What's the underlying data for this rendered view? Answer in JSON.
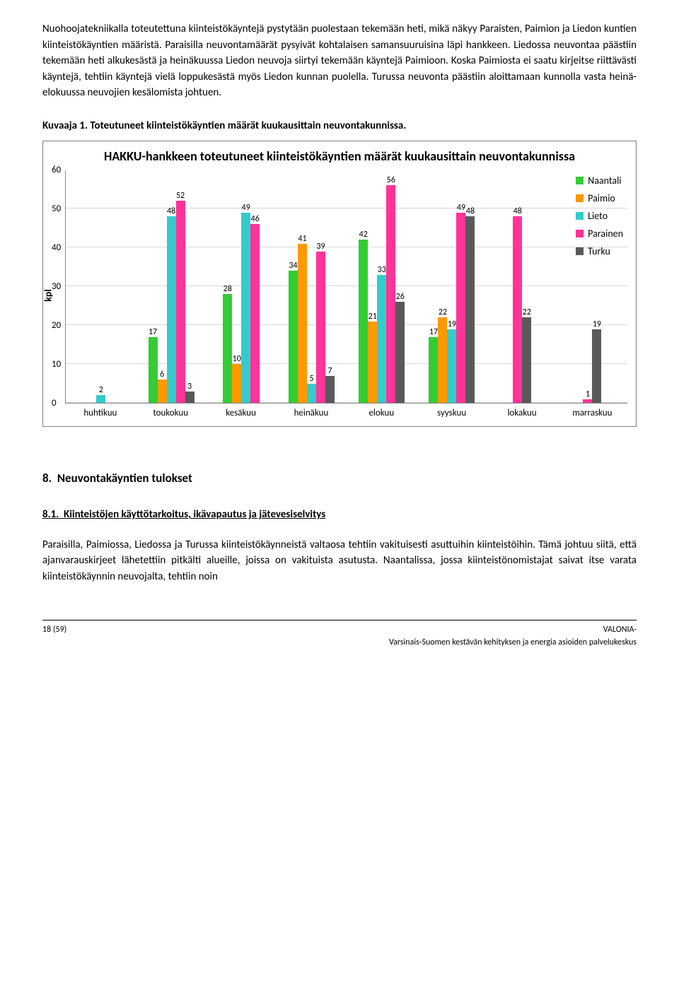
{
  "para1": "Nuohoojatekniikalla toteutettuna kiinteistökäyntejä pystytään puolestaan tekemään heti, mikä näkyy Paraisten, Paimion ja Liedon kuntien kiinteistökäyntien määristä. Paraisilla neuvontamäärät pysyivät kohtalaisen samansuuruisina läpi hankkeen. Liedossa neuvontaa päästiin tekemään heti alkukesästä ja heinäkuussa Liedon neuvoja siirtyi tekemään käyntejä Paimioon. Koska Paimiosta ei saatu kirjeitse riittävästi käyntejä, tehtiin käyntejä vielä loppukesästä myös Liedon kunnan puolella. Turussa neuvonta päästiin aloittamaan kunnolla vasta heinä-elokuussa neuvojien kesälomista johtuen.",
  "caption": "Kuvaaja 1. Toteutuneet kiinteistökäyntien määrät kuukausittain neuvontakunnissa.",
  "chart": {
    "title": "HAKKU-hankkeen toteutuneet kiinteistökäyntien määrät kuukausittain neuvontakunnissa",
    "type": "bar",
    "ylabel": "kpl",
    "ymax": 60,
    "ytick_step": 10,
    "grid_color": "#d9d9d9",
    "background": "#ffffff",
    "categories": [
      "huhtikuu",
      "toukokuu",
      "kesäkuu",
      "heinäkuu",
      "elokuu",
      "syyskuu",
      "lokakuu",
      "marraskuu"
    ],
    "series": [
      {
        "name": "Naantali",
        "color": "#33cc33"
      },
      {
        "name": "Paimio",
        "color": "#ff9900"
      },
      {
        "name": "Lieto",
        "color": "#33cccc"
      },
      {
        "name": "Parainen",
        "color": "#ff3399"
      },
      {
        "name": "Turku",
        "color": "#595959"
      }
    ],
    "data": {
      "huhtikuu": {
        "Lieto": 2
      },
      "toukokuu": {
        "Naantali": 17,
        "Paimio": 6,
        "Lieto": 48,
        "Parainen": 52,
        "Turku": 3
      },
      "kesäkuu": {
        "Naantali": 28,
        "Paimio": 10,
        "Lieto": 49,
        "Parainen": 46
      },
      "heinäkuu": {
        "Naantali": 34,
        "Paimio": 41,
        "Lieto": 5,
        "Parainen": 39,
        "Turku": 7
      },
      "elokuu": {
        "Naantali": 42,
        "Paimio": 21,
        "Lieto": 33,
        "Parainen": 56,
        "Turku": 26
      },
      "syyskuu": {
        "Naantali": 17,
        "Paimio": 22,
        "Lieto": 19,
        "Parainen": 49,
        "Turku": 48
      },
      "lokakuu": {
        "Parainen": 48,
        "Turku": 22
      },
      "marraskuu": {
        "Parainen": 1,
        "Turku": 19
      }
    }
  },
  "section_num": "8.",
  "section_title": "Neuvontakäyntien tulokset",
  "subsection_num": "8.1.",
  "subsection_title": "Kiinteistöjen käyttötarkoitus, ikävapautus ja jätevesiselvitys",
  "para2": "Paraisilla, Paimiossa, Liedossa ja Turussa kiinteistökäynneistä valtaosa tehtiin vakituisesti asuttuihin kiinteistöihin. Tämä johtuu siitä, että ajanvarauskirjeet lähetettiin pitkälti alueille, joissa on vakituista asutusta. Naantalissa, jossa kiinteistönomistajat saivat itse varata kiinteistökäynnin neuvojalta, tehtiin noin",
  "footer": {
    "page": "18 (59)",
    "org": "VALONIA-",
    "org2": "Varsinais-Suomen kestävän kehityksen ja energia asioiden palvelukeskus"
  }
}
